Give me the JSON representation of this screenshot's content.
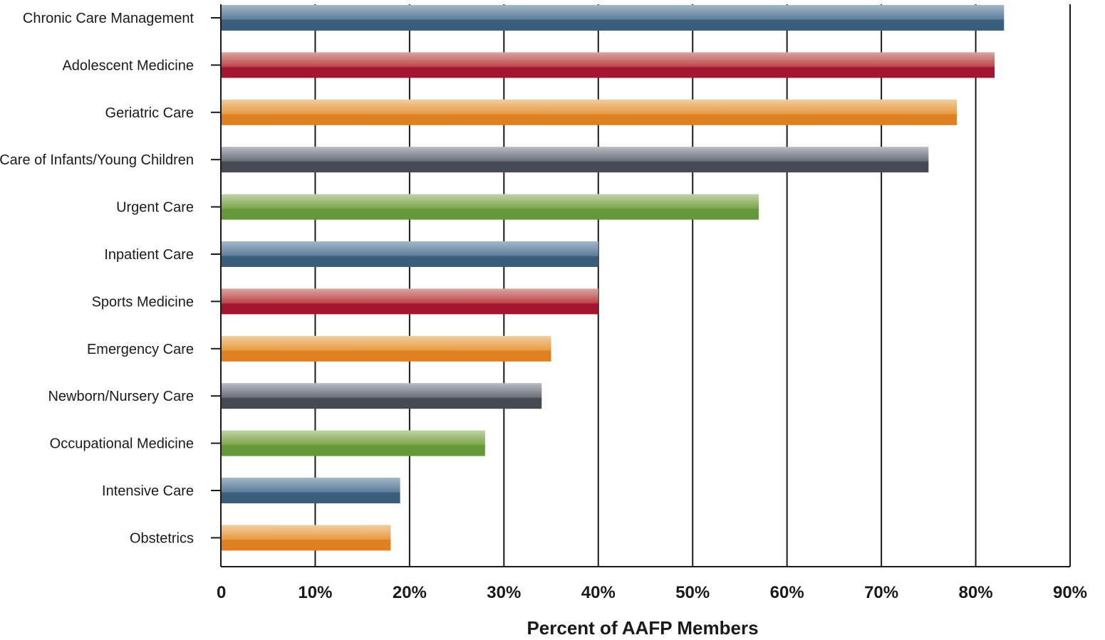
{
  "chart_data": {
    "type": "bar",
    "orientation": "horizontal",
    "title": "",
    "xlabel": "Percent of AAFP Members",
    "ylabel": "",
    "xlim": [
      0,
      90
    ],
    "x_ticks": [
      {
        "value": 0,
        "label": "0"
      },
      {
        "value": 10,
        "label": "10%"
      },
      {
        "value": 20,
        "label": "20%"
      },
      {
        "value": 30,
        "label": "30%"
      },
      {
        "value": 40,
        "label": "40%"
      },
      {
        "value": 50,
        "label": "50%"
      },
      {
        "value": 60,
        "label": "60%"
      },
      {
        "value": 70,
        "label": "70%"
      },
      {
        "value": 80,
        "label": "80%"
      },
      {
        "value": 90,
        "label": "90%"
      }
    ],
    "grid": "vertical",
    "legend": "none",
    "categories": [
      "Chronic Care Management",
      "Adolescent Medicine",
      "Geriatric Care",
      "Care of Infants/Young Children",
      "Urgent Care",
      "Inpatient Care",
      "Sports Medicine",
      "Emergency Care",
      "Newborn/Nursery Care",
      "Occupational Medicine",
      "Intensive Care",
      "Obstetrics"
    ],
    "values": [
      83,
      82,
      78,
      75,
      57,
      40,
      40,
      35,
      34,
      28,
      19,
      18
    ],
    "bar_colors": [
      "blue",
      "red",
      "orange",
      "gray",
      "green",
      "blue",
      "red",
      "orange",
      "gray",
      "green",
      "blue",
      "orange"
    ]
  },
  "palette": {
    "blue": [
      "#a3b6c8",
      "#5e7f9c",
      "#3a5d7c"
    ],
    "red": [
      "#d9a6a0",
      "#c0464c",
      "#a31530"
    ],
    "orange": [
      "#f1cda0",
      "#e89c43",
      "#de8022"
    ],
    "gray": [
      "#b9bcc2",
      "#6b707a",
      "#454a53"
    ],
    "green": [
      "#bfd3a8",
      "#7ea54a",
      "#64983a"
    ],
    "grid": "#1a1a1a",
    "axis": "#1a1a1a"
  }
}
